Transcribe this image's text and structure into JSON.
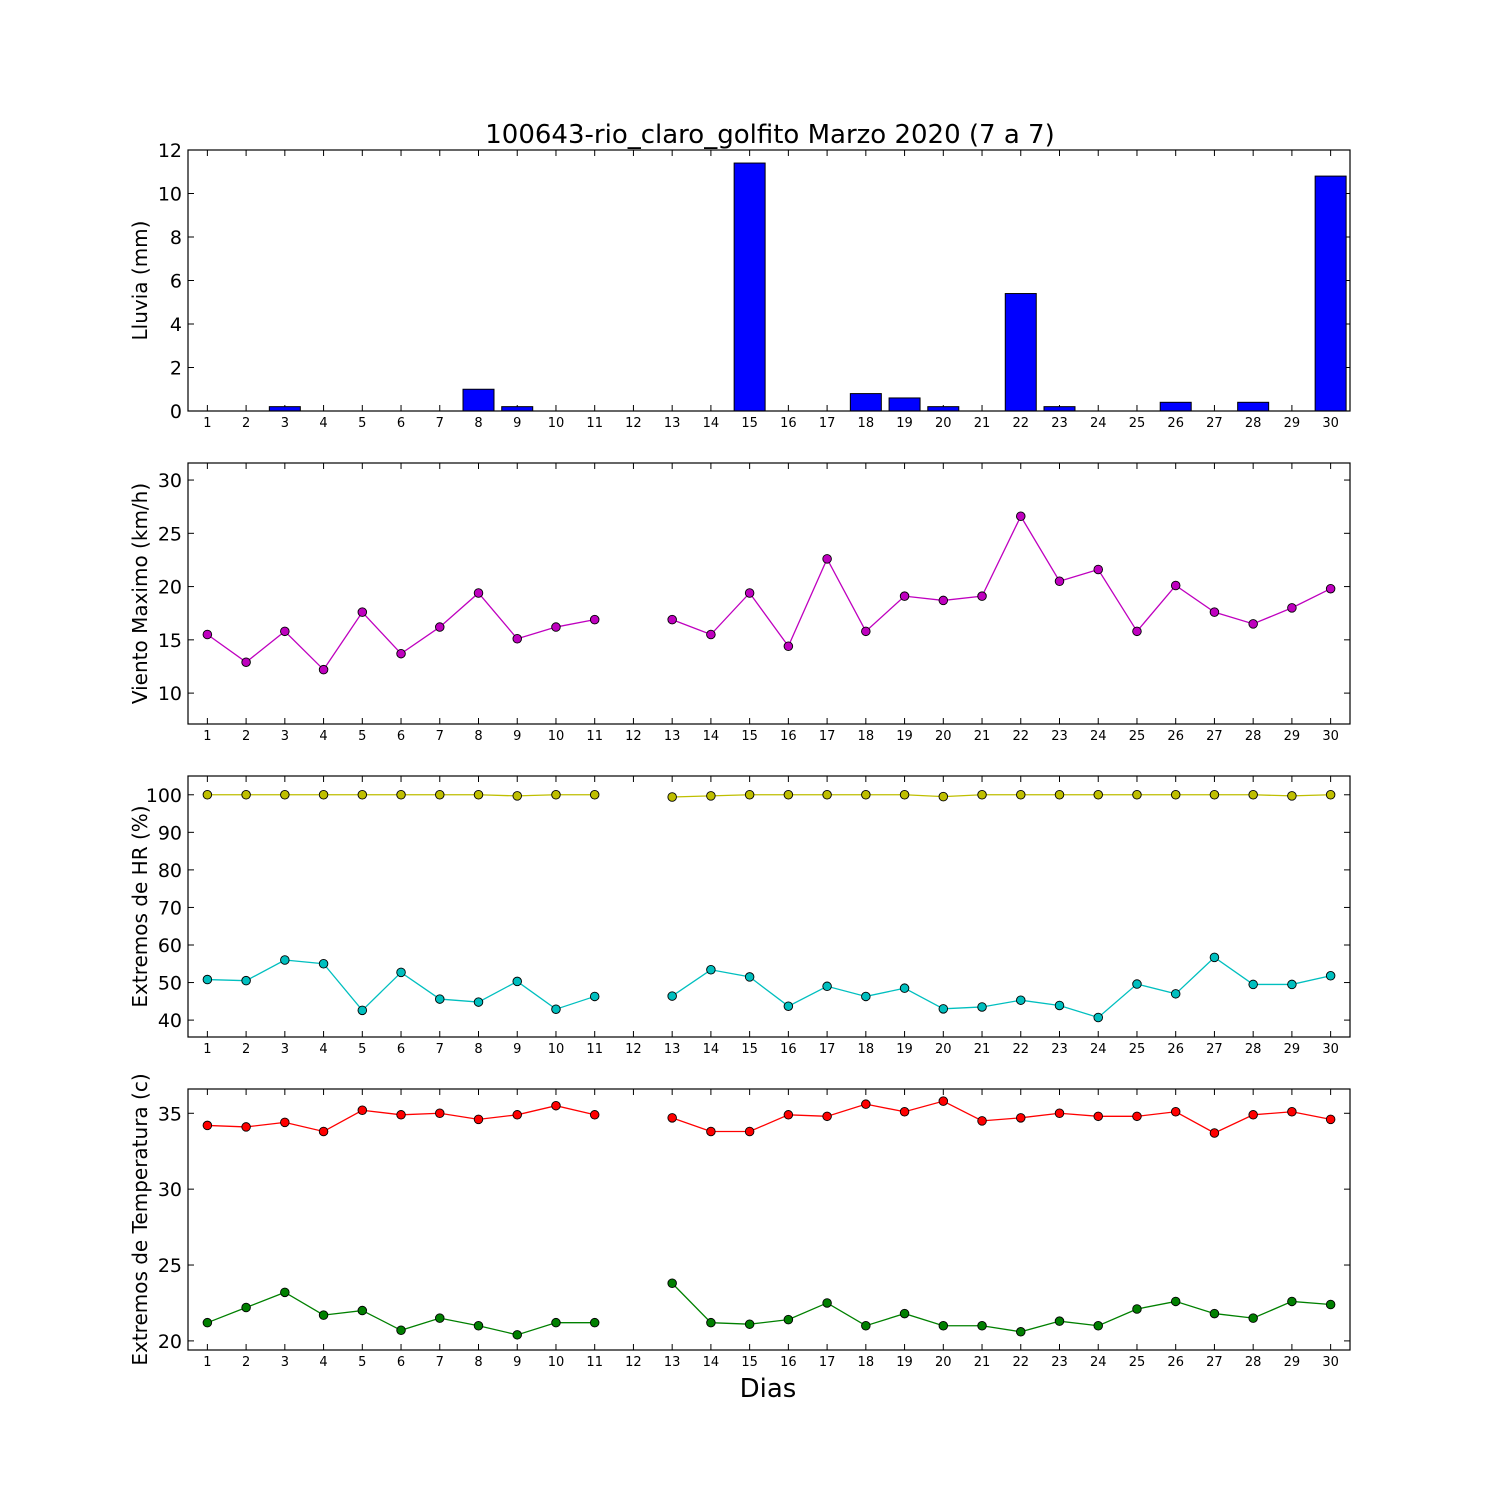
{
  "figure": {
    "title": "100643-rio_claro_golfito Marzo 2020  (7 a 7)",
    "xlabel": "Dias"
  },
  "chart_data": [
    {
      "type": "bar",
      "ylabel": "Lluvia (mm)",
      "ylim": [
        0,
        12
      ],
      "yticks": [
        0,
        2,
        4,
        6,
        8,
        10,
        12
      ],
      "x": [
        1,
        2,
        3,
        4,
        5,
        6,
        7,
        8,
        9,
        10,
        11,
        12,
        13,
        14,
        15,
        16,
        17,
        18,
        19,
        20,
        21,
        22,
        23,
        24,
        25,
        26,
        27,
        28,
        29,
        30
      ],
      "xlim": [
        0.5,
        30.5
      ],
      "series": [
        {
          "color": "#0000ff",
          "values": [
            0,
            0,
            0.2,
            0,
            0,
            0,
            0,
            1.0,
            0.2,
            0,
            0,
            0,
            0,
            0,
            11.4,
            0,
            0,
            0.8,
            0.6,
            0.2,
            0,
            5.4,
            0.2,
            0,
            0,
            0.4,
            0,
            0.4,
            0,
            10.8
          ]
        }
      ],
      "grid": false,
      "legend": "none"
    },
    {
      "type": "line",
      "ylabel": "Viento Maximo (km/h)",
      "ylim": [
        7.1,
        31.6
      ],
      "yticks": [
        10,
        15,
        20,
        25,
        30
      ],
      "x": [
        1,
        2,
        3,
        4,
        5,
        6,
        7,
        8,
        9,
        10,
        11,
        12,
        13,
        14,
        15,
        16,
        17,
        18,
        19,
        20,
        21,
        22,
        23,
        24,
        25,
        26,
        27,
        28,
        29,
        30
      ],
      "xlim": [
        0.5,
        30.5
      ],
      "series": [
        {
          "color": "#bf00bf",
          "values": [
            15.5,
            12.9,
            15.8,
            12.2,
            17.6,
            13.7,
            16.2,
            19.4,
            15.1,
            16.2,
            16.9,
            null,
            16.9,
            15.5,
            19.4,
            14.4,
            22.6,
            15.8,
            19.1,
            18.7,
            19.1,
            26.6,
            20.5,
            21.6,
            15.8,
            20.1,
            17.6,
            16.5,
            18.0,
            19.8
          ]
        }
      ],
      "grid": false,
      "legend": "none"
    },
    {
      "type": "line",
      "ylabel": "Extremos de HR (%)",
      "ylim": [
        35.5,
        105
      ],
      "yticks": [
        40,
        50,
        60,
        70,
        80,
        90,
        100
      ],
      "x": [
        1,
        2,
        3,
        4,
        5,
        6,
        7,
        8,
        9,
        10,
        11,
        12,
        13,
        14,
        15,
        16,
        17,
        18,
        19,
        20,
        21,
        22,
        23,
        24,
        25,
        26,
        27,
        28,
        29,
        30
      ],
      "xlim": [
        0.5,
        30.5
      ],
      "series": [
        {
          "color": "#bfbf00",
          "values": [
            100,
            100,
            100,
            100,
            100,
            100,
            100,
            100,
            99.7,
            100,
            100,
            null,
            99.4,
            99.7,
            100,
            100,
            100,
            100,
            100,
            99.5,
            100,
            100,
            100,
            100,
            100,
            100,
            100,
            100,
            99.7,
            100
          ]
        },
        {
          "color": "#00bfbf",
          "values": [
            50.8,
            50.5,
            56.0,
            55.0,
            42.6,
            52.7,
            45.6,
            44.8,
            50.3,
            42.9,
            46.3,
            null,
            46.4,
            53.4,
            51.5,
            43.7,
            49.0,
            46.3,
            48.5,
            43.0,
            43.5,
            45.3,
            43.9,
            40.7,
            49.6,
            47.0,
            56.7,
            49.5,
            49.5,
            51.8
          ]
        }
      ],
      "grid": false,
      "legend": "none"
    },
    {
      "type": "line",
      "ylabel": "Extremos de Temperatura (c)",
      "ylim": [
        19.4,
        36.6
      ],
      "yticks": [
        20,
        25,
        30,
        35
      ],
      "x": [
        1,
        2,
        3,
        4,
        5,
        6,
        7,
        8,
        9,
        10,
        11,
        12,
        13,
        14,
        15,
        16,
        17,
        18,
        19,
        20,
        21,
        22,
        23,
        24,
        25,
        26,
        27,
        28,
        29,
        30
      ],
      "xlim": [
        0.5,
        30.5
      ],
      "series": [
        {
          "color": "#ff0000",
          "values": [
            34.2,
            34.1,
            34.4,
            33.8,
            35.2,
            34.9,
            35.0,
            34.6,
            34.9,
            35.5,
            34.9,
            null,
            34.7,
            33.8,
            33.8,
            34.9,
            34.8,
            35.6,
            35.1,
            35.8,
            34.5,
            34.7,
            35.0,
            34.8,
            34.8,
            35.1,
            33.7,
            34.9,
            35.1,
            34.6
          ]
        },
        {
          "color": "#008000",
          "values": [
            21.2,
            22.2,
            23.2,
            21.7,
            22.0,
            20.7,
            21.5,
            21.0,
            20.4,
            21.2,
            21.2,
            null,
            23.8,
            21.2,
            21.1,
            21.4,
            22.5,
            21.0,
            21.8,
            21.0,
            21.0,
            20.6,
            21.3,
            21.0,
            22.1,
            22.6,
            21.8,
            21.5,
            22.6,
            22.4
          ]
        }
      ],
      "grid": false,
      "legend": "none"
    }
  ]
}
